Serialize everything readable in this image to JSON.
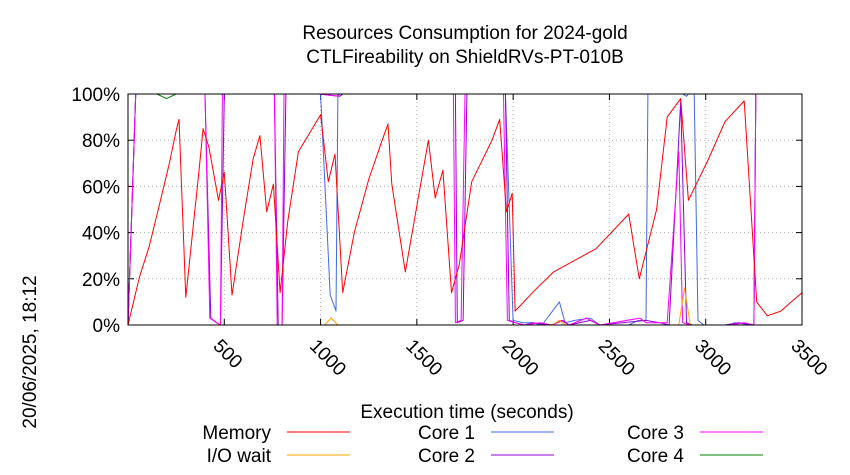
{
  "chart_data": {
    "type": "line",
    "title": "Resources Consumption for 2024-gold",
    "subtitle": "CTLFireability on ShieldRVs-PT-010B",
    "xlabel": "Execution time (seconds)",
    "ylabel": "",
    "side_label": "20/06/2025, 18:12",
    "xlim": [
      0,
      3500
    ],
    "ylim": [
      0,
      100
    ],
    "x_ticks": [
      500,
      1000,
      1500,
      2000,
      2500,
      3000,
      3500
    ],
    "y_ticks": [
      0,
      20,
      40,
      60,
      80,
      100
    ],
    "y_tick_labels": [
      "0%",
      "20%",
      "40%",
      "60%",
      "80%",
      "100%"
    ],
    "grid": true,
    "legend_position": "bottom",
    "series": [
      {
        "name": "Memory",
        "color": "#ff0000",
        "points": [
          [
            0,
            0
          ],
          [
            60,
            21
          ],
          [
            110,
            34
          ],
          [
            160,
            51
          ],
          [
            215,
            70
          ],
          [
            250,
            84
          ],
          [
            265,
            89
          ],
          [
            300,
            12
          ],
          [
            370,
            68
          ],
          [
            390,
            85
          ],
          [
            420,
            77
          ],
          [
            470,
            54
          ],
          [
            500,
            66
          ],
          [
            540,
            13
          ],
          [
            600,
            46
          ],
          [
            650,
            72
          ],
          [
            685,
            82
          ],
          [
            720,
            49
          ],
          [
            755,
            61
          ],
          [
            790,
            14
          ],
          [
            830,
            45
          ],
          [
            885,
            75
          ],
          [
            1000,
            91
          ],
          [
            1040,
            62
          ],
          [
            1075,
            74
          ],
          [
            1115,
            14
          ],
          [
            1175,
            40
          ],
          [
            1250,
            63
          ],
          [
            1320,
            80
          ],
          [
            1350,
            87
          ],
          [
            1370,
            61
          ],
          [
            1440,
            23
          ],
          [
            1560,
            80
          ],
          [
            1595,
            55
          ],
          [
            1635,
            67
          ],
          [
            1680,
            14
          ],
          [
            1720,
            26
          ],
          [
            1785,
            62
          ],
          [
            1890,
            80
          ],
          [
            1930,
            89
          ],
          [
            1965,
            49
          ],
          [
            1995,
            57
          ],
          [
            2010,
            6
          ],
          [
            2100,
            14
          ],
          [
            2210,
            23
          ],
          [
            2430,
            33
          ],
          [
            2600,
            48
          ],
          [
            2655,
            20
          ],
          [
            2745,
            50
          ],
          [
            2800,
            90
          ],
          [
            2870,
            98
          ],
          [
            2910,
            54
          ],
          [
            3010,
            71
          ],
          [
            3100,
            88
          ],
          [
            3200,
            97
          ],
          [
            3265,
            10
          ],
          [
            3320,
            4
          ],
          [
            3390,
            6
          ],
          [
            3430,
            9
          ],
          [
            3500,
            14
          ]
        ]
      },
      {
        "name": "I/O wait",
        "color": "#ffa500",
        "points": [
          [
            0,
            0
          ],
          [
            1020,
            0
          ],
          [
            1055,
            3
          ],
          [
            1090,
            0
          ],
          [
            2200,
            0
          ],
          [
            2240,
            2
          ],
          [
            2270,
            0
          ],
          [
            2860,
            0
          ],
          [
            2890,
            16
          ],
          [
            2920,
            0
          ],
          [
            3500,
            0
          ]
        ]
      },
      {
        "name": "Core 1",
        "color": "#4169e1",
        "points": [
          [
            0,
            0
          ],
          [
            40,
            100
          ],
          [
            1000,
            100
          ],
          [
            1050,
            13
          ],
          [
            1080,
            6
          ],
          [
            1090,
            100
          ],
          [
            1960,
            100
          ],
          [
            2000,
            2
          ],
          [
            2050,
            1
          ],
          [
            2100,
            1
          ],
          [
            2150,
            0
          ],
          [
            2240,
            10
          ],
          [
            2270,
            1
          ],
          [
            2320,
            2
          ],
          [
            2400,
            3
          ],
          [
            2450,
            0
          ],
          [
            2600,
            0
          ],
          [
            2650,
            2
          ],
          [
            2690,
            2
          ],
          [
            2700,
            100
          ],
          [
            2880,
            100
          ],
          [
            2900,
            99
          ],
          [
            2910,
            100
          ],
          [
            2940,
            100
          ],
          [
            2960,
            2
          ],
          [
            2990,
            0
          ],
          [
            3130,
            0
          ],
          [
            3150,
            1
          ],
          [
            3250,
            0
          ],
          [
            3260,
            100
          ],
          [
            3500,
            100
          ]
        ]
      },
      {
        "name": "Core 2",
        "color": "#9400d3",
        "points": [
          [
            0,
            0
          ],
          [
            40,
            100
          ],
          [
            400,
            100
          ],
          [
            430,
            3
          ],
          [
            460,
            1
          ],
          [
            480,
            0
          ],
          [
            500,
            100
          ],
          [
            760,
            100
          ],
          [
            780,
            0
          ],
          [
            800,
            0
          ],
          [
            820,
            100
          ],
          [
            950,
            100
          ],
          [
            990,
            100
          ],
          [
            1100,
            99
          ],
          [
            1115,
            100
          ],
          [
            1700,
            100
          ],
          [
            1710,
            1
          ],
          [
            1740,
            2
          ],
          [
            1760,
            100
          ],
          [
            1960,
            100
          ],
          [
            1980,
            2
          ],
          [
            2010,
            1
          ],
          [
            2060,
            0
          ],
          [
            2100,
            1
          ],
          [
            2200,
            0
          ],
          [
            2250,
            2
          ],
          [
            2290,
            0
          ],
          [
            2400,
            2
          ],
          [
            2450,
            0
          ],
          [
            2690,
            2
          ],
          [
            2760,
            1
          ],
          [
            2810,
            0
          ],
          [
            2870,
            97
          ],
          [
            2900,
            1
          ],
          [
            2930,
            0
          ],
          [
            3100,
            0
          ],
          [
            3170,
            1
          ],
          [
            3250,
            0
          ],
          [
            3260,
            100
          ],
          [
            3500,
            100
          ]
        ]
      },
      {
        "name": "Core 3",
        "color": "#ff00ff",
        "points": [
          [
            0,
            0
          ],
          [
            40,
            100
          ],
          [
            400,
            100
          ],
          [
            425,
            3
          ],
          [
            460,
            1
          ],
          [
            480,
            0
          ],
          [
            490,
            100
          ],
          [
            760,
            100
          ],
          [
            775,
            0
          ],
          [
            800,
            0
          ],
          [
            810,
            100
          ],
          [
            950,
            100
          ],
          [
            995,
            100
          ],
          [
            1090,
            99
          ],
          [
            1100,
            100
          ],
          [
            1690,
            100
          ],
          [
            1700,
            1
          ],
          [
            1730,
            2
          ],
          [
            1750,
            100
          ],
          [
            1950,
            100
          ],
          [
            1970,
            2
          ],
          [
            2010,
            1
          ],
          [
            2060,
            0
          ],
          [
            2140,
            1
          ],
          [
            2200,
            0
          ],
          [
            2260,
            2
          ],
          [
            2290,
            0
          ],
          [
            2380,
            3
          ],
          [
            2450,
            0
          ],
          [
            2660,
            3
          ],
          [
            2690,
            1
          ],
          [
            2800,
            1
          ],
          [
            2860,
            75
          ],
          [
            2880,
            1
          ],
          [
            2920,
            0
          ],
          [
            3130,
            0
          ],
          [
            3200,
            1
          ],
          [
            3250,
            0
          ],
          [
            3260,
            100
          ],
          [
            3500,
            100
          ]
        ]
      },
      {
        "name": "Core 4",
        "color": "#008000",
        "points": [
          [
            0,
            0
          ],
          [
            40,
            100
          ],
          [
            150,
            100
          ],
          [
            200,
            98
          ],
          [
            250,
            100
          ],
          [
            3040,
            100
          ],
          [
            3060,
            100
          ],
          [
            3200,
            100
          ],
          [
            3500,
            100
          ]
        ]
      }
    ]
  }
}
